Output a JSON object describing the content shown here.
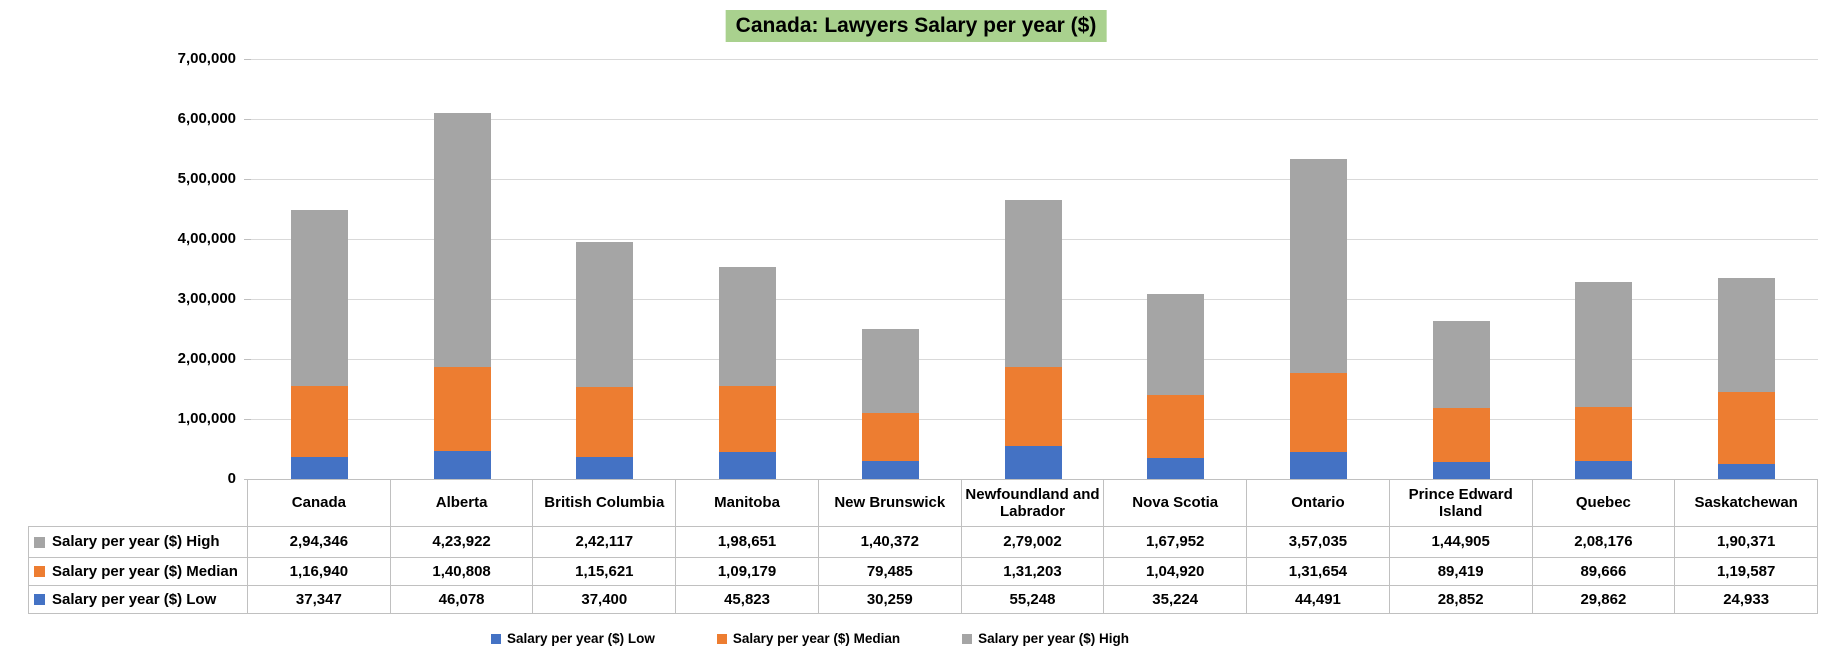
{
  "title": "Canada: Lawyers Salary per year ($)",
  "colors": {
    "low": "#4472C4",
    "median": "#ED7D31",
    "high": "#A5A5A5",
    "title_bg": "#A9D18E",
    "gridline": "#D9D9D9",
    "table_border": "#C0C0C0"
  },
  "chart_data": {
    "type": "bar",
    "stacked": true,
    "title": "Canada: Lawyers Salary per year ($)",
    "categories": [
      "Canada",
      "Alberta",
      "British Columbia",
      "Manitoba",
      "New Brunswick",
      "Newfoundland and Labrador",
      "Nova Scotia",
      "Ontario",
      "Prince Edward Island",
      "Quebec",
      "Saskatchewan"
    ],
    "series": [
      {
        "name": "Salary per year ($) Low",
        "color": "#4472C4",
        "values": [
          37347,
          46078,
          37400,
          45823,
          30259,
          55248,
          35224,
          44491,
          28852,
          29862,
          24933
        ],
        "formatted": [
          "37,347",
          "46,078",
          "37,400",
          "45,823",
          "30,259",
          "55,248",
          "35,224",
          "44,491",
          "28,852",
          "29,862",
          "24,933"
        ]
      },
      {
        "name": "Salary per year ($) Median",
        "color": "#ED7D31",
        "values": [
          116940,
          140808,
          115621,
          109179,
          79485,
          131203,
          104920,
          131654,
          89419,
          89666,
          119587
        ],
        "formatted": [
          "1,16,940",
          "1,40,808",
          "1,15,621",
          "1,09,179",
          "79,485",
          "1,31,203",
          "1,04,920",
          "1,31,654",
          "89,419",
          "89,666",
          "1,19,587"
        ]
      },
      {
        "name": "Salary per year ($) High",
        "color": "#A5A5A5",
        "values": [
          294346,
          423922,
          242117,
          198651,
          140372,
          279002,
          167952,
          357035,
          144905,
          208176,
          190371
        ],
        "formatted": [
          "2,94,346",
          "4,23,922",
          "2,42,117",
          "1,98,651",
          "1,40,372",
          "2,79,002",
          "1,67,952",
          "3,57,035",
          "1,44,905",
          "2,08,176",
          "1,90,371"
        ]
      }
    ],
    "y_axis": {
      "min": 0,
      "max": 700000,
      "step": 100000,
      "tick_labels": [
        "7,00,000",
        "6,00,000",
        "5,00,000",
        "4,00,000",
        "3,00,000",
        "2,00,000",
        "1,00,000",
        "0"
      ]
    },
    "grid": true,
    "legend_position": "bottom",
    "data_table_row_order": [
      "Salary per year ($) High",
      "Salary per year ($) Median",
      "Salary per year ($) Low"
    ]
  }
}
